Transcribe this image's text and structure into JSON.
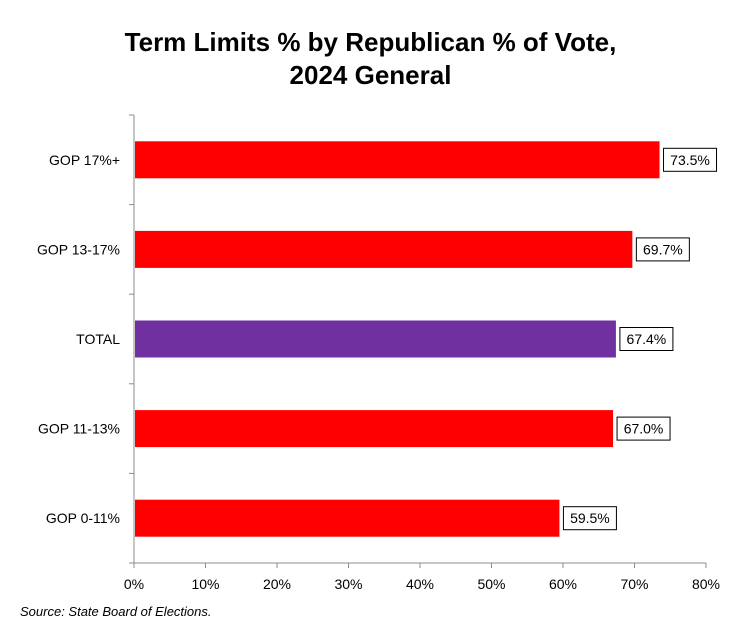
{
  "chart_data": {
    "type": "bar",
    "orientation": "horizontal",
    "title_lines": [
      "Term Limits % by Republican % of Vote,",
      "2024 General"
    ],
    "categories": [
      "GOP 17%+",
      "GOP 13-17%",
      "TOTAL",
      "GOP 11-13%",
      "GOP 0-11%"
    ],
    "values": [
      73.5,
      69.7,
      67.4,
      67.0,
      59.5
    ],
    "data_labels": [
      "73.5%",
      "69.7%",
      "67.4%",
      "67.0%",
      "59.5%"
    ],
    "bar_colors": [
      "#ff0000",
      "#ff0000",
      "#7030a0",
      "#ff0000",
      "#ff0000"
    ],
    "xlim": [
      0,
      80
    ],
    "xticks": [
      0,
      10,
      20,
      30,
      40,
      50,
      60,
      70,
      80
    ],
    "xtick_labels": [
      "0%",
      "10%",
      "20%",
      "30%",
      "40%",
      "50%",
      "60%",
      "70%",
      "80%"
    ],
    "xlabel": "",
    "ylabel": "",
    "grid": false,
    "legend": "none"
  },
  "source": "Source: State Board of Elections."
}
